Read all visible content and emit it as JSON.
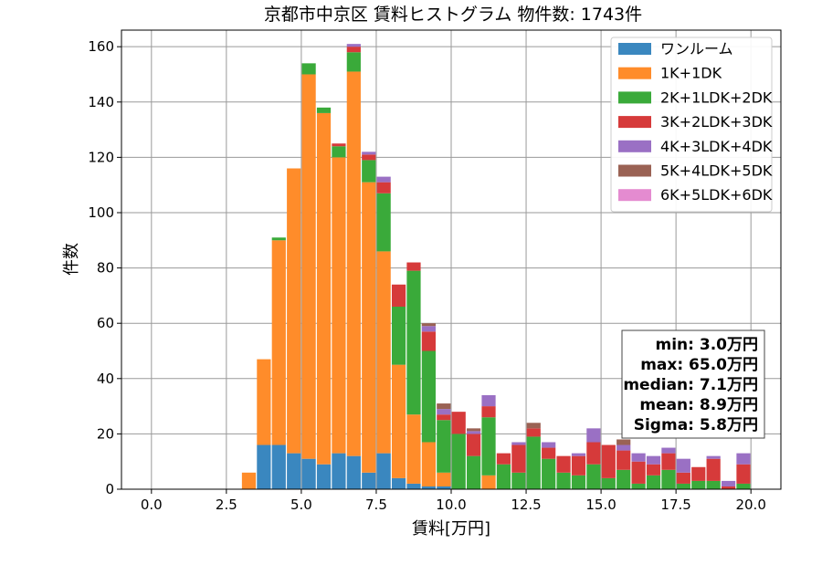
{
  "chart_data": {
    "type": "bar",
    "stacked": true,
    "title": "京都市中京区 賃料ヒストグラム 物件数: 1743件",
    "xlabel": "賃料[万円]",
    "ylabel": "件数",
    "xlim": [
      -1,
      21
    ],
    "ylim": [
      0,
      166
    ],
    "xticks": [
      0,
      2.5,
      5,
      7.5,
      10,
      12.5,
      15,
      17.5,
      20
    ],
    "xtick_labels": [
      "0.0",
      "2.5",
      "5.0",
      "7.5",
      "10.0",
      "12.5",
      "15.0",
      "17.5",
      "20.0"
    ],
    "yticks": [
      0,
      20,
      40,
      60,
      80,
      100,
      120,
      140,
      160
    ],
    "ytick_labels": [
      "0",
      "20",
      "40",
      "60",
      "80",
      "100",
      "120",
      "140",
      "160"
    ],
    "grid": true,
    "legend_position": "top-right",
    "bin_width": 0.5,
    "x": [
      3.0,
      3.5,
      4.0,
      4.5,
      5.0,
      5.5,
      6.0,
      6.5,
      7.0,
      7.5,
      8.0,
      8.5,
      9.0,
      9.5,
      10.0,
      10.5,
      11.0,
      11.5,
      12.0,
      12.5,
      13.0,
      13.5,
      14.0,
      14.5,
      15.0,
      15.5,
      16.0,
      16.5,
      17.0,
      17.5,
      18.0,
      18.5,
      19.0,
      19.5
    ],
    "series": [
      {
        "name": "ワンルーム",
        "color": "#3a87bf",
        "values": [
          0,
          16,
          16,
          13,
          11,
          9,
          13,
          12,
          6,
          13,
          4,
          2,
          1,
          1,
          0,
          0,
          0,
          0,
          0,
          0,
          0,
          0,
          0,
          0,
          0,
          0,
          0,
          0,
          0,
          0,
          0,
          0,
          0,
          0
        ]
      },
      {
        "name": "1K+1DK",
        "color": "#ff8c2a",
        "values": [
          6,
          31,
          74,
          103,
          139,
          127,
          107,
          139,
          105,
          73,
          41,
          25,
          16,
          5,
          0,
          0,
          5,
          0,
          0,
          0,
          0,
          0,
          0,
          0,
          0,
          0,
          0,
          0,
          0,
          0,
          0,
          0,
          0,
          0
        ]
      },
      {
        "name": "2K+1LDK+2DK",
        "color": "#3aaa3a",
        "values": [
          0,
          0,
          1,
          0,
          4,
          2,
          4,
          7,
          8,
          21,
          21,
          52,
          33,
          19,
          20,
          12,
          21,
          9,
          6,
          19,
          11,
          6,
          5,
          9,
          4,
          7,
          2,
          5,
          7,
          2,
          3,
          3,
          0,
          2
        ]
      },
      {
        "name": "3K+2LDK+3DK",
        "color": "#d63a3a",
        "values": [
          0,
          0,
          0,
          0,
          0,
          0,
          1,
          2,
          2,
          4,
          8,
          3,
          7,
          2,
          8,
          8,
          4,
          4,
          10,
          3,
          4,
          6,
          7,
          8,
          12,
          7,
          8,
          4,
          6,
          4,
          5,
          8,
          1,
          7
        ]
      },
      {
        "name": "4K+3LDK+4DK",
        "color": "#9a70c4",
        "values": [
          0,
          0,
          0,
          0,
          0,
          0,
          0,
          1,
          1,
          2,
          0,
          0,
          2,
          2,
          0,
          1,
          4,
          0,
          1,
          0,
          2,
          0,
          1,
          5,
          0,
          2,
          3,
          3,
          2,
          5,
          0,
          1,
          2,
          4
        ]
      },
      {
        "name": "5K+4LDK+5DK",
        "color": "#9a6254",
        "values": [
          0,
          0,
          0,
          0,
          0,
          0,
          0,
          0,
          0,
          0,
          0,
          0,
          1,
          2,
          0,
          1,
          0,
          0,
          0,
          2,
          0,
          0,
          0,
          0,
          0,
          2,
          0,
          0,
          0,
          0,
          0,
          0,
          0,
          0
        ]
      },
      {
        "name": "6K+5LDK+6DK",
        "color": "#e48bd0",
        "values": [
          0,
          0,
          0,
          0,
          0,
          0,
          0,
          0,
          0,
          0,
          0,
          0,
          0,
          0,
          0,
          0,
          0,
          0,
          0,
          0,
          0,
          0,
          0,
          0,
          0,
          0,
          0,
          0,
          0,
          0,
          0,
          0,
          0,
          0
        ]
      }
    ]
  },
  "stats": [
    "min: 3.0万円",
    "max: 65.0万円",
    "median: 7.1万円",
    "mean: 8.9万円",
    "Sigma: 5.8万円"
  ]
}
